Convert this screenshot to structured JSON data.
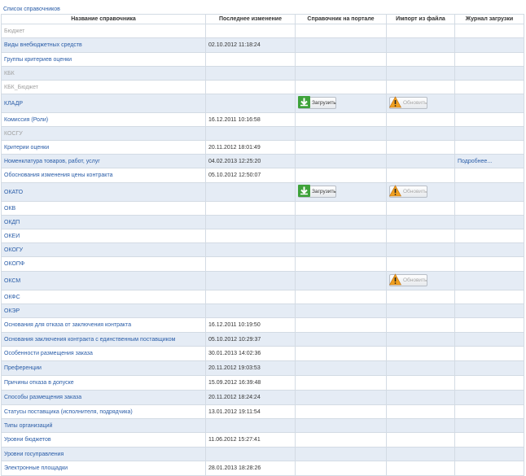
{
  "breadcrumb": "Список справочников",
  "columns": [
    "Название справочника",
    "Последнее изменение",
    "Справочник на портале",
    "Импорт из файла",
    "Журнал загрузки"
  ],
  "actions": {
    "load_label": "Загрузить",
    "update_label": "Обновить",
    "more_label": "Подробнее..."
  },
  "icons": {
    "load": "download-arrow-icon",
    "update": "warning-triangle-icon"
  },
  "colors": {
    "link": "#2a5da8",
    "inactive": "#a0a0a0",
    "row_alt": "#e5ecf5",
    "load_icon": "#3ea23a",
    "warning_icon": "#f0a020"
  },
  "rows": [
    {
      "name": "Бюджет",
      "date": "",
      "active": false,
      "load": false,
      "update": false,
      "more": false
    },
    {
      "name": "Виды внебюджетных средств",
      "date": "02.10.2012 11:18:24",
      "active": true,
      "load": false,
      "update": false,
      "more": false
    },
    {
      "name": "Группы критериев оценки",
      "date": "",
      "active": true,
      "load": false,
      "update": false,
      "more": false
    },
    {
      "name": "КБК",
      "date": "",
      "active": false,
      "load": false,
      "update": false,
      "more": false
    },
    {
      "name": "КБК_Бюджет",
      "date": "",
      "active": false,
      "load": false,
      "update": false,
      "more": false
    },
    {
      "name": "КЛАДР",
      "date": "",
      "active": true,
      "load": true,
      "update": true,
      "more": false
    },
    {
      "name": "Комиссия (Роли)",
      "date": "16.12.2011 10:16:58",
      "active": true,
      "load": false,
      "update": false,
      "more": false
    },
    {
      "name": "КОСГУ",
      "date": "",
      "active": false,
      "load": false,
      "update": false,
      "more": false
    },
    {
      "name": "Критерии оценки",
      "date": "20.11.2012 18:01:49",
      "active": true,
      "load": false,
      "update": false,
      "more": false
    },
    {
      "name": "Номенклатура товаров, работ, услуг",
      "date": "04.02.2013 12:25:20",
      "active": true,
      "load": false,
      "update": false,
      "more": true
    },
    {
      "name": "Обоснования изменения цены контракта",
      "date": "05.10.2012 12:50:07",
      "active": true,
      "load": false,
      "update": false,
      "more": false
    },
    {
      "name": "ОКАТО",
      "date": "",
      "active": true,
      "load": true,
      "update": true,
      "more": false
    },
    {
      "name": "ОКВ",
      "date": "",
      "active": true,
      "load": false,
      "update": false,
      "more": false
    },
    {
      "name": "ОКДП",
      "date": "",
      "active": true,
      "load": false,
      "update": false,
      "more": false
    },
    {
      "name": "ОКЕИ",
      "date": "",
      "active": true,
      "load": false,
      "update": false,
      "more": false
    },
    {
      "name": "ОКОГУ",
      "date": "",
      "active": true,
      "load": false,
      "update": false,
      "more": false
    },
    {
      "name": "ОКОПФ",
      "date": "",
      "active": true,
      "load": false,
      "update": false,
      "more": false
    },
    {
      "name": "ОКСМ",
      "date": "",
      "active": true,
      "load": false,
      "update": true,
      "more": false
    },
    {
      "name": "ОКФС",
      "date": "",
      "active": true,
      "load": false,
      "update": false,
      "more": false
    },
    {
      "name": "ОКЭР",
      "date": "",
      "active": true,
      "load": false,
      "update": false,
      "more": false
    },
    {
      "name": "Основания для отказа от заключения контракта",
      "date": "16.12.2011 10:19:50",
      "active": true,
      "load": false,
      "update": false,
      "more": false
    },
    {
      "name": "Основания заключения контракта с единственным поставщиком",
      "date": "05.10.2012 10:29:37",
      "active": true,
      "load": false,
      "update": false,
      "more": false
    },
    {
      "name": "Особенности размещения заказа",
      "date": "30.01.2013 14:02:36",
      "active": true,
      "load": false,
      "update": false,
      "more": false
    },
    {
      "name": "Преференции",
      "date": "20.11.2012 19:03:53",
      "active": true,
      "load": false,
      "update": false,
      "more": false
    },
    {
      "name": "Причины отказа в допуске",
      "date": "15.09.2012 16:39:48",
      "active": true,
      "load": false,
      "update": false,
      "more": false
    },
    {
      "name": "Способы размещения заказа",
      "date": "20.11.2012 18:24:24",
      "active": true,
      "load": false,
      "update": false,
      "more": false
    },
    {
      "name": "Статусы поставщика (исполнителя, подрядчика)",
      "date": "13.01.2012 19:11:54",
      "active": true,
      "load": false,
      "update": false,
      "more": false
    },
    {
      "name": "Типы организаций",
      "date": "",
      "active": true,
      "load": false,
      "update": false,
      "more": false
    },
    {
      "name": "Уровни бюджетов",
      "date": "11.06.2012 15:27:41",
      "active": true,
      "load": false,
      "update": false,
      "more": false
    },
    {
      "name": "Уровни госуправления",
      "date": "",
      "active": true,
      "load": false,
      "update": false,
      "more": false
    },
    {
      "name": "Электронные площадки",
      "date": "28.01.2013 18:28:26",
      "active": true,
      "load": false,
      "update": false,
      "more": false
    }
  ]
}
